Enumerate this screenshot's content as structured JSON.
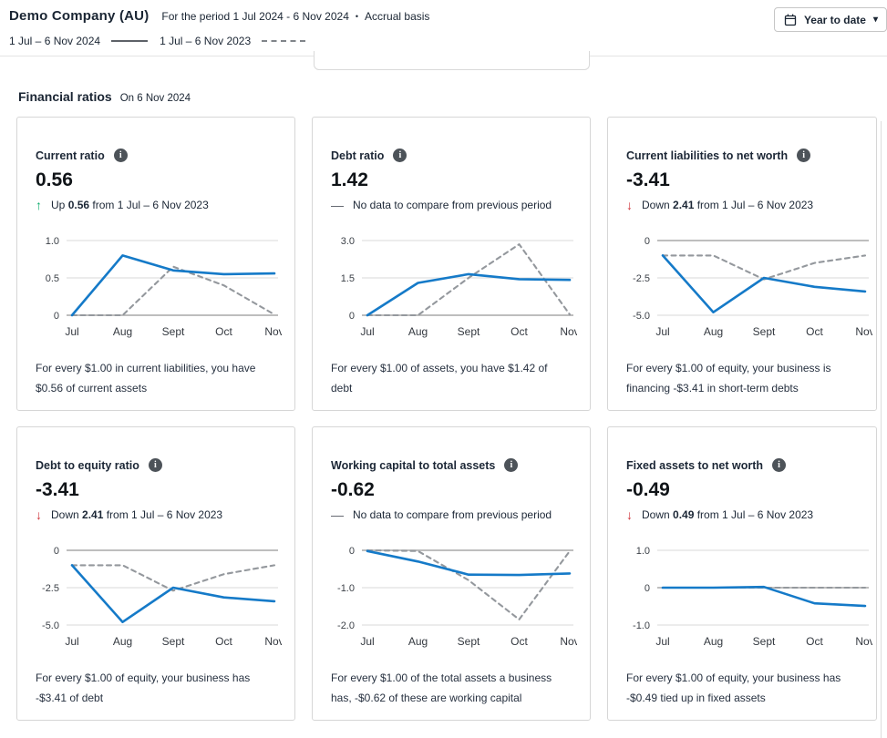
{
  "header": {
    "company": "Demo Company (AU)",
    "period_label": "For the period 1 Jul 2024 - 6 Nov 2024",
    "separator": "•",
    "basis": "Accrual basis",
    "date_range_button": {
      "label": "Year to date",
      "icon": "calendar-icon",
      "caret": "▾"
    },
    "legend": [
      {
        "label": "1 Jul – 6 Nov 2024",
        "style": "solid"
      },
      {
        "label": "1 Jul – 6 Nov 2023",
        "style": "dashed"
      }
    ]
  },
  "section": {
    "title": "Financial ratios",
    "as_at": "On 6 Nov 2024"
  },
  "colors": {
    "series_2024": "#157ac8",
    "series_2023": "#94989d",
    "up_green": "#0cab6b",
    "down_red": "#d0343c",
    "grid_light": "#e6e6e6",
    "grid_zero": "#b4b4b4",
    "card_border": "#d6d6d6",
    "text_dark": "#1c2736"
  },
  "cards": [
    {
      "title": "Current ratio",
      "value": "0.56",
      "trend": {
        "type": "up",
        "word": "Up",
        "amount": "0.56",
        "rest": "from 1 Jul – 6 Nov 2023"
      },
      "description": "For every $1.00 in current liabilities, you have $0.56 of current assets"
    },
    {
      "title": "Debt ratio",
      "value": "1.42",
      "trend": {
        "type": "none",
        "text": "No data to compare from previous period"
      },
      "description": "For every $1.00 of assets, you have $1.42 of debt"
    },
    {
      "title": "Current liabilities to net worth",
      "value": "-3.41",
      "trend": {
        "type": "down",
        "word": "Down",
        "amount": "2.41",
        "rest": "from 1 Jul – 6 Nov 2023"
      },
      "description": "For every $1.00 of equity, your business is financing -$3.41 in short-term debts"
    },
    {
      "title": "Debt to equity ratio",
      "value": "-3.41",
      "trend": {
        "type": "down",
        "word": "Down",
        "amount": "2.41",
        "rest": "from 1 Jul – 6 Nov 2023"
      },
      "description": "For every $1.00 of equity, your business has -$3.41 of debt"
    },
    {
      "title": "Working capital to total assets",
      "value": "-0.62",
      "trend": {
        "type": "none",
        "text": "No data to compare from previous period"
      },
      "description": "For every $1.00 of the total assets a business has, -$0.62 of these are working capital"
    },
    {
      "title": "Fixed assets to net worth",
      "value": "-0.49",
      "trend": {
        "type": "down",
        "word": "Down",
        "amount": "0.49",
        "rest": "from 1 Jul – 6 Nov 2023"
      },
      "description": "For every $1.00 of equity, your business has -$0.49 tied up in fixed assets"
    }
  ],
  "chart_data": [
    {
      "type": "line",
      "title": "Current ratio",
      "categories": [
        "Jul",
        "Aug",
        "Sept",
        "Oct",
        "Nov"
      ],
      "ylim": [
        0,
        1.0
      ],
      "gridlines": [
        {
          "value": 1.0,
          "label": "1.0",
          "zero": false
        },
        {
          "value": 0.5,
          "label": "0.5",
          "zero": false
        },
        {
          "value": 0,
          "label": "0",
          "zero": true
        }
      ],
      "series": [
        {
          "name": "1 Jul – 6 Nov 2024",
          "style": "solid",
          "values": [
            0,
            0.8,
            0.6,
            0.55,
            0.56
          ]
        },
        {
          "name": "1 Jul – 6 Nov 2023",
          "style": "dashed",
          "values": [
            0,
            0,
            0.65,
            0.4,
            0.01
          ]
        }
      ]
    },
    {
      "type": "line",
      "title": "Debt ratio",
      "categories": [
        "Jul",
        "Aug",
        "Sept",
        "Oct",
        "Nov"
      ],
      "ylim": [
        0,
        3.0
      ],
      "gridlines": [
        {
          "value": 3.0,
          "label": "3.0",
          "zero": false
        },
        {
          "value": 1.5,
          "label": "1.5",
          "zero": false
        },
        {
          "value": 0,
          "label": "0",
          "zero": true
        }
      ],
      "series": [
        {
          "name": "1 Jul – 6 Nov 2024",
          "style": "solid",
          "values": [
            0,
            1.3,
            1.65,
            1.45,
            1.42
          ]
        },
        {
          "name": "1 Jul – 6 Nov 2023",
          "style": "dashed",
          "values": [
            0,
            0,
            1.5,
            2.85,
            0.03
          ]
        }
      ]
    },
    {
      "type": "line",
      "title": "Current liabilities to net worth",
      "categories": [
        "Jul",
        "Aug",
        "Sept",
        "Oct",
        "Nov"
      ],
      "ylim": [
        -5.0,
        0
      ],
      "gridlines": [
        {
          "value": 0,
          "label": "0",
          "zero": true
        },
        {
          "value": -2.5,
          "label": "-2.5",
          "zero": false
        },
        {
          "value": -5.0,
          "label": "-5.0",
          "zero": false
        }
      ],
      "series": [
        {
          "name": "1 Jul – 6 Nov 2024",
          "style": "solid",
          "values": [
            -1.0,
            -4.8,
            -2.5,
            -3.1,
            -3.41
          ]
        },
        {
          "name": "1 Jul – 6 Nov 2023",
          "style": "dashed",
          "values": [
            -1.0,
            -1.0,
            -2.6,
            -1.5,
            -1.0
          ]
        }
      ]
    },
    {
      "type": "line",
      "title": "Debt to equity ratio",
      "categories": [
        "Jul",
        "Aug",
        "Sept",
        "Oct",
        "Nov"
      ],
      "ylim": [
        -5.0,
        0
      ],
      "gridlines": [
        {
          "value": 0,
          "label": "0",
          "zero": true
        },
        {
          "value": -2.5,
          "label": "-2.5",
          "zero": false
        },
        {
          "value": -5.0,
          "label": "-5.0",
          "zero": false
        }
      ],
      "series": [
        {
          "name": "1 Jul – 6 Nov 2024",
          "style": "solid",
          "values": [
            -1.0,
            -4.8,
            -2.5,
            -3.15,
            -3.41
          ]
        },
        {
          "name": "1 Jul – 6 Nov 2023",
          "style": "dashed",
          "values": [
            -1.0,
            -1.0,
            -2.7,
            -1.6,
            -1.0
          ]
        }
      ]
    },
    {
      "type": "line",
      "title": "Working capital to total assets",
      "categories": [
        "Jul",
        "Aug",
        "Sept",
        "Oct",
        "Nov"
      ],
      "ylim": [
        -2.0,
        0
      ],
      "gridlines": [
        {
          "value": 0,
          "label": "0",
          "zero": true
        },
        {
          "value": -1.0,
          "label": "-1.0",
          "zero": false
        },
        {
          "value": -2.0,
          "label": "-2.0",
          "zero": false
        }
      ],
      "series": [
        {
          "name": "1 Jul – 6 Nov 2024",
          "style": "solid",
          "values": [
            -0.02,
            -0.3,
            -0.65,
            -0.66,
            -0.62
          ]
        },
        {
          "name": "1 Jul – 6 Nov 2023",
          "style": "dashed",
          "values": [
            0,
            -0.02,
            -0.8,
            -1.85,
            -0.02
          ]
        }
      ]
    },
    {
      "type": "line",
      "title": "Fixed assets to net worth",
      "categories": [
        "Jul",
        "Aug",
        "Sept",
        "Oct",
        "Nov"
      ],
      "ylim": [
        -1.0,
        1.0
      ],
      "gridlines": [
        {
          "value": 1.0,
          "label": "1.0",
          "zero": false
        },
        {
          "value": 0,
          "label": "0",
          "zero": true
        },
        {
          "value": -1.0,
          "label": "-1.0",
          "zero": false
        }
      ],
      "series": [
        {
          "name": "1 Jul – 6 Nov 2024",
          "style": "solid",
          "values": [
            0,
            0,
            0.02,
            -0.42,
            -0.49
          ]
        },
        {
          "name": "1 Jul – 6 Nov 2023",
          "style": "dashed",
          "values": [
            0,
            0,
            0,
            0,
            0
          ]
        }
      ]
    }
  ]
}
